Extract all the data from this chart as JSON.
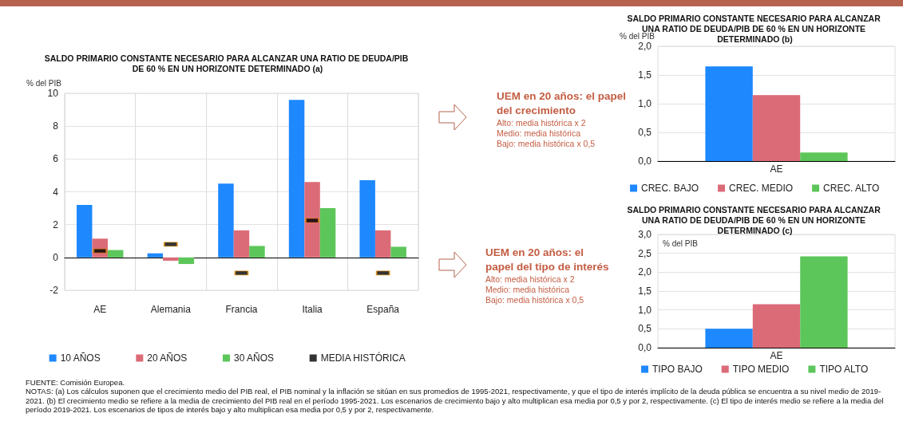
{
  "chart_data": [
    {
      "type": "bar",
      "title": "SALDO PRIMARIO CONSTANTE NECESARIO PARA ALCANZAR UNA RATIO DE DEUDA/PIB DE 60 % EN UN HORIZONTE DETERMINADO (a)",
      "ylabel": "% del PIB",
      "categories": [
        "AE",
        "Alemania",
        "Francia",
        "Italia",
        "España"
      ],
      "series": [
        {
          "name": "10 AÑOS",
          "color": "#1e88ff",
          "values": [
            3.2,
            0.25,
            4.5,
            9.6,
            4.7
          ]
        },
        {
          "name": "20 AÑOS",
          "color": "#dc6b78",
          "values": [
            1.15,
            -0.2,
            1.65,
            4.6,
            1.65
          ]
        },
        {
          "name": "30 AÑOS",
          "color": "#5dc65a",
          "values": [
            0.45,
            -0.4,
            0.7,
            3.0,
            0.65
          ]
        },
        {
          "name": "MEDIA HISTÓRICA",
          "color": "#000000",
          "type": "scatter",
          "x": [
            "AE",
            "Alemania",
            "Francia",
            "Italia",
            "España"
          ],
          "values": [
            0.4,
            0.8,
            -0.95,
            2.25,
            -0.95
          ]
        }
      ],
      "ylim": [
        -2,
        10
      ],
      "yticks": [
        -2,
        0,
        2,
        4,
        6,
        8,
        10
      ],
      "grid": true,
      "legend": "bottom",
      "marker": "square",
      "annotations": [
        "FUENTE: Comisión Europea.",
        "NOTAS:  (a) Los cálculos suponen que el crecimiento medio del PIB real, el PIB nominal y la inflación se sitúan en sus promedios de 1995-2021, respectivamente, y que el tipo de interés implícito de la deuda pública se encuentra a su nivel medio de 2019-2021. (b) El crecimiento medio se refiere a la media de crecimiento del PIB real en el período 1995-2021. Los escenarios de crecimiento bajo y alto multiplican esa media por 0,5 y por 2, respectivamente. (c) El tipo de interés medio se refiere a la media del período 2019-2021. Los escenarios de tipos de interés bajo y alto multiplican esa media por 0,5 y por 2, respectivamente."
      ]
    },
    {
      "type": "other",
      "title": "UEM en 20 años: el papel del crecimiento",
      "annotations": [
        "Alto: media histórica x 2",
        "Medio: media histórica",
        "Bajo: media histórica x 0,5"
      ]
    },
    {
      "type": "bar",
      "title": "SALDO PRIMARIO CONSTANTE NECESARIO PARA ALCANZAR UNA RATIO DE DEUDA/PIB DE 60 % EN UN HORIZONTE DETERMINADO (b)",
      "ylabel": "% del PIB",
      "categories": [
        "AE"
      ],
      "series": [
        {
          "name": "CREC. BAJO",
          "color": "#1e88ff",
          "values": [
            1.65
          ]
        },
        {
          "name": "CREC. MEDIO",
          "color": "#dc6b78",
          "values": [
            1.15
          ]
        },
        {
          "name": "CREC. ALTO",
          "color": "#5dc65a",
          "values": [
            0.15
          ]
        }
      ],
      "ylim": [
        0,
        2
      ],
      "yticks": [
        {
          "value": 0,
          "label": "0,0"
        },
        {
          "value": 0.5,
          "label": "0,5"
        },
        {
          "value": 1,
          "label": "1,0"
        },
        {
          "value": 1.5,
          "label": "1,5"
        },
        {
          "value": 2,
          "label": "2,0"
        }
      ],
      "grid": "y",
      "legend": "bottom"
    },
    {
      "type": "other",
      "title": "UEM en 20 años: el papel del tipo de interés",
      "annotations": [
        "Alto: media histórica x 2",
        "Medio: media histórica",
        "Bajo: media histórica x 0,5"
      ]
    },
    {
      "type": "bar",
      "title": "SALDO PRIMARIO CONSTANTE NECESARIO PARA ALCANZAR UNA RATIO DE DEUDA/PIB DE 60 % EN UN HORIZONTE DETERMINADO (c)",
      "ylabel": "% del PIB",
      "categories": [
        "AE"
      ],
      "series": [
        {
          "name": "TIPO BAJO",
          "color": "#1e88ff",
          "values": [
            0.5
          ]
        },
        {
          "name": "TIPO MEDIO",
          "color": "#dc6b78",
          "values": [
            1.15
          ]
        },
        {
          "name": "TIPO ALTO",
          "color": "#5dc65a",
          "values": [
            2.42
          ]
        }
      ],
      "ylim": [
        0,
        3
      ],
      "yticks": [
        {
          "value": 0,
          "label": "0,0"
        },
        {
          "value": 0.5,
          "label": "0,5"
        },
        {
          "value": 1,
          "label": "1,0"
        },
        {
          "value": 1.5,
          "label": "1,5"
        },
        {
          "value": 2,
          "label": "2,0"
        },
        {
          "value": 2.5,
          "label": "2,5"
        },
        {
          "value": 3,
          "label": "3,0"
        }
      ],
      "grid": "y",
      "legend": "bottom"
    }
  ]
}
